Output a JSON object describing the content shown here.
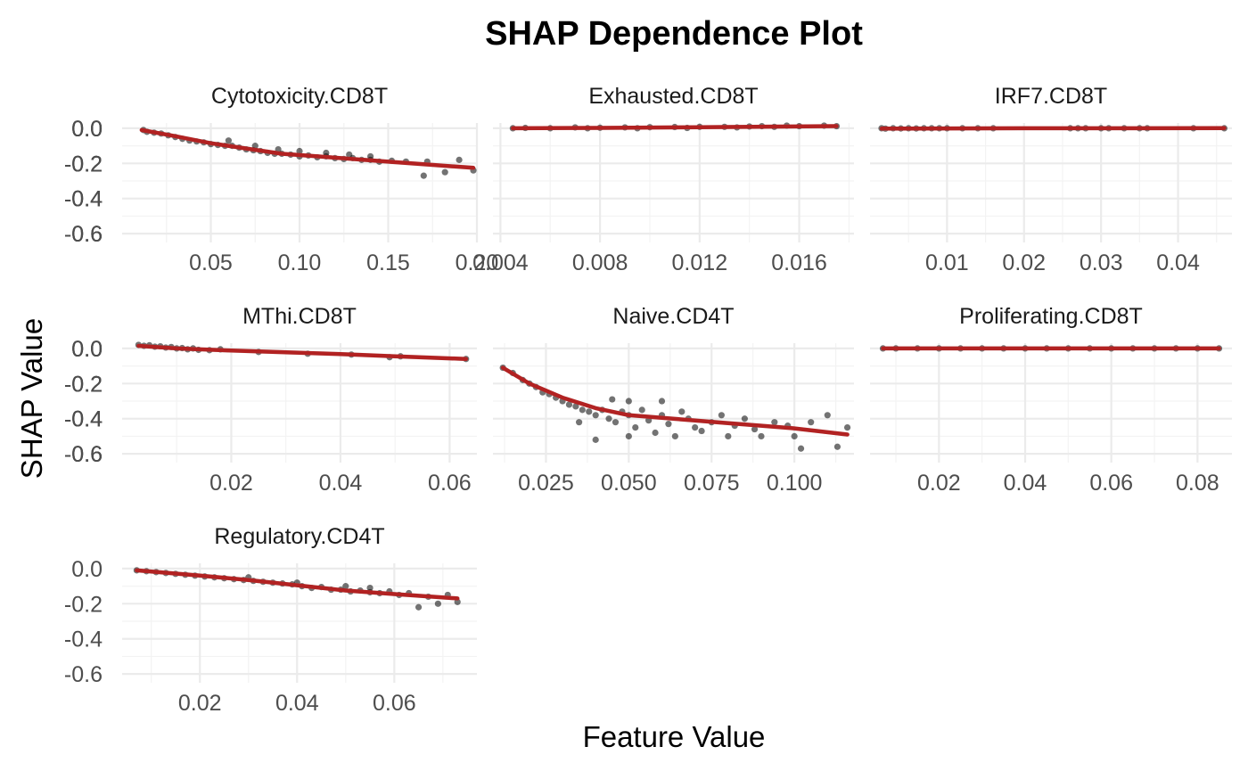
{
  "chart_data": {
    "type": "scatter",
    "title": "SHAP Dependence Plot",
    "xlabel": "Feature Value",
    "ylabel": "SHAP Value",
    "y_ticks": [
      0.0,
      -0.2,
      -0.4,
      -0.6
    ],
    "y_tick_labels": [
      "0.0",
      "-0.2",
      "-0.4",
      "-0.6"
    ],
    "ylim": [
      -0.65,
      0.03
    ],
    "grid": true,
    "colors": {
      "points": "#000000",
      "smooth": "#b22222",
      "band": "#bdbdbd",
      "grid": "#ebebeb"
    },
    "facets": [
      {
        "name": "Cytotoxicity.CD8T",
        "xlim": [
          0.0,
          0.2
        ],
        "x_ticks": [
          0.05,
          0.1,
          0.15,
          0.2
        ],
        "x_tick_labels": [
          "0.05",
          "0.10",
          "0.15",
          "0.20"
        ],
        "smooth": [
          [
            0.011,
            -0.01
          ],
          [
            0.03,
            -0.045
          ],
          [
            0.05,
            -0.085
          ],
          [
            0.07,
            -0.115
          ],
          [
            0.09,
            -0.145
          ],
          [
            0.11,
            -0.16
          ],
          [
            0.13,
            -0.175
          ],
          [
            0.15,
            -0.19
          ],
          [
            0.17,
            -0.205
          ],
          [
            0.198,
            -0.225
          ]
        ],
        "points": [
          [
            0.012,
            -0.01
          ],
          [
            0.014,
            -0.02
          ],
          [
            0.018,
            -0.025
          ],
          [
            0.022,
            -0.03
          ],
          [
            0.026,
            -0.04
          ],
          [
            0.03,
            -0.05
          ],
          [
            0.034,
            -0.06
          ],
          [
            0.038,
            -0.07
          ],
          [
            0.042,
            -0.075
          ],
          [
            0.046,
            -0.08
          ],
          [
            0.05,
            -0.09
          ],
          [
            0.054,
            -0.095
          ],
          [
            0.058,
            -0.1
          ],
          [
            0.062,
            -0.1
          ],
          [
            0.066,
            -0.11
          ],
          [
            0.07,
            -0.12
          ],
          [
            0.074,
            -0.125
          ],
          [
            0.078,
            -0.13
          ],
          [
            0.082,
            -0.14
          ],
          [
            0.086,
            -0.145
          ],
          [
            0.09,
            -0.145
          ],
          [
            0.095,
            -0.15
          ],
          [
            0.1,
            -0.16
          ],
          [
            0.105,
            -0.155
          ],
          [
            0.11,
            -0.165
          ],
          [
            0.115,
            -0.16
          ],
          [
            0.12,
            -0.17
          ],
          [
            0.125,
            -0.175
          ],
          [
            0.13,
            -0.17
          ],
          [
            0.135,
            -0.18
          ],
          [
            0.14,
            -0.18
          ],
          [
            0.145,
            -0.19
          ],
          [
            0.152,
            -0.185
          ],
          [
            0.16,
            -0.19
          ],
          [
            0.17,
            -0.27
          ],
          [
            0.172,
            -0.19
          ],
          [
            0.182,
            -0.25
          ],
          [
            0.19,
            -0.18
          ],
          [
            0.198,
            -0.24
          ],
          [
            0.06,
            -0.07
          ],
          [
            0.075,
            -0.1
          ],
          [
            0.088,
            -0.12
          ],
          [
            0.1,
            -0.13
          ],
          [
            0.115,
            -0.14
          ],
          [
            0.128,
            -0.15
          ],
          [
            0.14,
            -0.16
          ]
        ]
      },
      {
        "name": "Exhausted.CD8T",
        "xlim": [
          0.0037,
          0.0182
        ],
        "x_ticks": [
          0.004,
          0.008,
          0.012,
          0.016
        ],
        "x_tick_labels": [
          "0.004",
          "0.008",
          "0.012",
          "0.016"
        ],
        "smooth": [
          [
            0.0045,
            0.0
          ],
          [
            0.008,
            0.002
          ],
          [
            0.012,
            0.006
          ],
          [
            0.0175,
            0.012
          ]
        ],
        "points": [
          [
            0.0045,
            0.0
          ],
          [
            0.005,
            0.002
          ],
          [
            0.006,
            0.0
          ],
          [
            0.007,
            0.005
          ],
          [
            0.0075,
            0.0
          ],
          [
            0.008,
            0.003
          ],
          [
            0.009,
            0.005
          ],
          [
            0.0095,
            0.0
          ],
          [
            0.01,
            0.006
          ],
          [
            0.011,
            0.007
          ],
          [
            0.0115,
            0.002
          ],
          [
            0.012,
            0.008
          ],
          [
            0.013,
            0.008
          ],
          [
            0.0135,
            0.005
          ],
          [
            0.014,
            0.01
          ],
          [
            0.0145,
            0.012
          ],
          [
            0.015,
            0.008
          ],
          [
            0.0155,
            0.015
          ],
          [
            0.016,
            0.012
          ],
          [
            0.017,
            0.015
          ],
          [
            0.0175,
            0.012
          ]
        ]
      },
      {
        "name": "IRF7.CD8T",
        "xlim": [
          0.0,
          0.047
        ],
        "x_ticks": [
          0.01,
          0.02,
          0.03,
          0.04
        ],
        "x_tick_labels": [
          "0.01",
          "0.02",
          "0.03",
          "0.04"
        ],
        "smooth": [
          [
            0.0015,
            -0.002
          ],
          [
            0.01,
            -0.001
          ],
          [
            0.02,
            0.0
          ],
          [
            0.03,
            0.0
          ],
          [
            0.046,
            0.001
          ]
        ],
        "points": [
          [
            0.0015,
            0.0
          ],
          [
            0.002,
            -0.002
          ],
          [
            0.003,
            0.0
          ],
          [
            0.004,
            -0.001
          ],
          [
            0.005,
            0.0
          ],
          [
            0.006,
            -0.001
          ],
          [
            0.007,
            0.0
          ],
          [
            0.008,
            0.0
          ],
          [
            0.009,
            0.0
          ],
          [
            0.01,
            0.0
          ],
          [
            0.012,
            0.0
          ],
          [
            0.014,
            0.0
          ],
          [
            0.016,
            0.0
          ],
          [
            0.026,
            0.0
          ],
          [
            0.027,
            0.0
          ],
          [
            0.028,
            0.0
          ],
          [
            0.03,
            0.0
          ],
          [
            0.031,
            0.0
          ],
          [
            0.033,
            0.0
          ],
          [
            0.035,
            0.0
          ],
          [
            0.036,
            0.0
          ],
          [
            0.042,
            0.0
          ],
          [
            0.046,
            0.0
          ]
        ]
      },
      {
        "name": "MThi.CD8T",
        "xlim": [
          0.0,
          0.065
        ],
        "x_ticks": [
          0.02,
          0.04,
          0.06
        ],
        "x_tick_labels": [
          "0.02",
          "0.04",
          "0.06"
        ],
        "smooth": [
          [
            0.003,
            0.015
          ],
          [
            0.01,
            0.0
          ],
          [
            0.02,
            -0.012
          ],
          [
            0.03,
            -0.022
          ],
          [
            0.04,
            -0.032
          ],
          [
            0.05,
            -0.045
          ],
          [
            0.063,
            -0.06
          ]
        ],
        "points": [
          [
            0.003,
            0.02
          ],
          [
            0.004,
            0.015
          ],
          [
            0.005,
            0.018
          ],
          [
            0.006,
            0.01
          ],
          [
            0.007,
            0.012
          ],
          [
            0.008,
            0.005
          ],
          [
            0.009,
            0.008
          ],
          [
            0.01,
            0.0
          ],
          [
            0.011,
            0.002
          ],
          [
            0.012,
            -0.005
          ],
          [
            0.013,
            0.0
          ],
          [
            0.014,
            -0.008
          ],
          [
            0.016,
            -0.01
          ],
          [
            0.018,
            -0.005
          ],
          [
            0.025,
            -0.02
          ],
          [
            0.034,
            -0.03
          ],
          [
            0.042,
            -0.035
          ],
          [
            0.049,
            -0.05
          ],
          [
            0.051,
            -0.045
          ],
          [
            0.063,
            -0.06
          ]
        ]
      },
      {
        "name": "Naive.CD4T",
        "xlim": [
          0.009,
          0.118
        ],
        "x_ticks": [
          0.025,
          0.05,
          0.075,
          0.1
        ],
        "x_tick_labels": [
          "0.025",
          "0.050",
          "0.075",
          "0.100"
        ],
        "smooth": [
          [
            0.012,
            -0.11
          ],
          [
            0.02,
            -0.2
          ],
          [
            0.03,
            -0.28
          ],
          [
            0.04,
            -0.34
          ],
          [
            0.05,
            -0.38
          ],
          [
            0.06,
            -0.395
          ],
          [
            0.07,
            -0.41
          ],
          [
            0.08,
            -0.425
          ],
          [
            0.09,
            -0.44
          ],
          [
            0.1,
            -0.455
          ],
          [
            0.116,
            -0.49
          ]
        ],
        "points": [
          [
            0.012,
            -0.11
          ],
          [
            0.015,
            -0.14
          ],
          [
            0.018,
            -0.18
          ],
          [
            0.02,
            -0.2
          ],
          [
            0.022,
            -0.22
          ],
          [
            0.024,
            -0.25
          ],
          [
            0.026,
            -0.26
          ],
          [
            0.028,
            -0.28
          ],
          [
            0.03,
            -0.3
          ],
          [
            0.032,
            -0.32
          ],
          [
            0.034,
            -0.33
          ],
          [
            0.036,
            -0.35
          ],
          [
            0.038,
            -0.36
          ],
          [
            0.04,
            -0.38
          ],
          [
            0.042,
            -0.35
          ],
          [
            0.044,
            -0.4
          ],
          [
            0.046,
            -0.42
          ],
          [
            0.048,
            -0.36
          ],
          [
            0.05,
            -0.38
          ],
          [
            0.052,
            -0.45
          ],
          [
            0.054,
            -0.35
          ],
          [
            0.056,
            -0.41
          ],
          [
            0.058,
            -0.48
          ],
          [
            0.06,
            -0.38
          ],
          [
            0.062,
            -0.43
          ],
          [
            0.064,
            -0.5
          ],
          [
            0.066,
            -0.36
          ],
          [
            0.068,
            -0.4
          ],
          [
            0.07,
            -0.45
          ],
          [
            0.072,
            -0.47
          ],
          [
            0.075,
            -0.42
          ],
          [
            0.078,
            -0.38
          ],
          [
            0.08,
            -0.5
          ],
          [
            0.082,
            -0.44
          ],
          [
            0.085,
            -0.4
          ],
          [
            0.088,
            -0.46
          ],
          [
            0.09,
            -0.5
          ],
          [
            0.094,
            -0.42
          ],
          [
            0.098,
            -0.44
          ],
          [
            0.1,
            -0.5
          ],
          [
            0.102,
            -0.57
          ],
          [
            0.105,
            -0.42
          ],
          [
            0.11,
            -0.38
          ],
          [
            0.113,
            -0.56
          ],
          [
            0.116,
            -0.45
          ],
          [
            0.04,
            -0.52
          ],
          [
            0.05,
            -0.5
          ],
          [
            0.06,
            -0.3
          ],
          [
            0.05,
            -0.3
          ],
          [
            0.035,
            -0.42
          ],
          [
            0.045,
            -0.29
          ]
        ]
      },
      {
        "name": "Proliferating.CD8T",
        "xlim": [
          0.004,
          0.088
        ],
        "x_ticks": [
          0.02,
          0.04,
          0.06,
          0.08
        ],
        "x_tick_labels": [
          "0.02",
          "0.04",
          "0.06",
          "0.08"
        ],
        "smooth": [
          [
            0.007,
            0.0
          ],
          [
            0.04,
            0.0
          ],
          [
            0.085,
            0.0
          ]
        ],
        "points": [
          [
            0.007,
            0.0
          ],
          [
            0.01,
            0.0
          ],
          [
            0.015,
            0.0
          ],
          [
            0.02,
            0.0
          ],
          [
            0.025,
            0.0
          ],
          [
            0.03,
            0.0
          ],
          [
            0.035,
            0.0
          ],
          [
            0.04,
            0.0
          ],
          [
            0.045,
            0.0
          ],
          [
            0.05,
            0.0
          ],
          [
            0.055,
            0.0
          ],
          [
            0.06,
            0.0
          ],
          [
            0.065,
            0.0
          ],
          [
            0.07,
            0.0
          ],
          [
            0.075,
            0.0
          ],
          [
            0.08,
            0.0
          ],
          [
            0.085,
            0.0
          ]
        ]
      },
      {
        "name": "Regulatory.CD4T",
        "xlim": [
          0.004,
          0.077
        ],
        "x_ticks": [
          0.02,
          0.04,
          0.06
        ],
        "x_tick_labels": [
          "0.02",
          "0.04",
          "0.06"
        ],
        "smooth": [
          [
            0.007,
            -0.01
          ],
          [
            0.02,
            -0.04
          ],
          [
            0.03,
            -0.065
          ],
          [
            0.04,
            -0.095
          ],
          [
            0.05,
            -0.125
          ],
          [
            0.06,
            -0.145
          ],
          [
            0.073,
            -0.17
          ]
        ],
        "points": [
          [
            0.007,
            -0.01
          ],
          [
            0.009,
            -0.015
          ],
          [
            0.011,
            -0.02
          ],
          [
            0.013,
            -0.025
          ],
          [
            0.015,
            -0.03
          ],
          [
            0.017,
            -0.035
          ],
          [
            0.019,
            -0.04
          ],
          [
            0.021,
            -0.045
          ],
          [
            0.023,
            -0.05
          ],
          [
            0.025,
            -0.055
          ],
          [
            0.027,
            -0.06
          ],
          [
            0.029,
            -0.065
          ],
          [
            0.031,
            -0.07
          ],
          [
            0.033,
            -0.075
          ],
          [
            0.035,
            -0.08
          ],
          [
            0.037,
            -0.085
          ],
          [
            0.039,
            -0.09
          ],
          [
            0.041,
            -0.1
          ],
          [
            0.043,
            -0.11
          ],
          [
            0.045,
            -0.105
          ],
          [
            0.047,
            -0.12
          ],
          [
            0.049,
            -0.12
          ],
          [
            0.051,
            -0.13
          ],
          [
            0.053,
            -0.125
          ],
          [
            0.055,
            -0.135
          ],
          [
            0.057,
            -0.14
          ],
          [
            0.059,
            -0.13
          ],
          [
            0.061,
            -0.15
          ],
          [
            0.063,
            -0.14
          ],
          [
            0.065,
            -0.22
          ],
          [
            0.067,
            -0.16
          ],
          [
            0.069,
            -0.2
          ],
          [
            0.071,
            -0.15
          ],
          [
            0.073,
            -0.19
          ],
          [
            0.03,
            -0.05
          ],
          [
            0.04,
            -0.08
          ],
          [
            0.05,
            -0.1
          ],
          [
            0.055,
            -0.11
          ]
        ]
      }
    ]
  }
}
